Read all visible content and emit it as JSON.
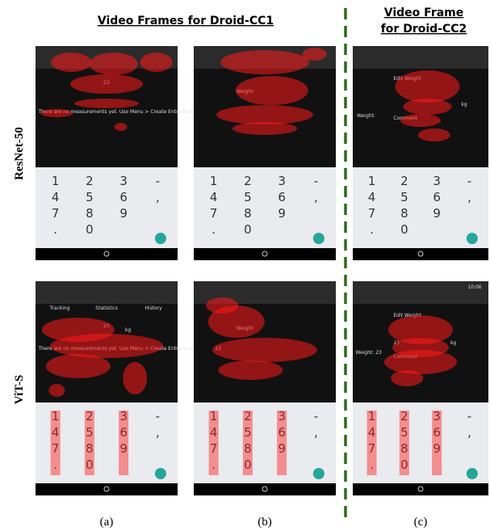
{
  "header": {
    "left": "Video Frames for Droid-CC1",
    "right": [
      "Video Frame",
      "for Droid-CC2"
    ]
  },
  "rows": [
    "ResNet-50",
    "ViT-S"
  ],
  "captions": [
    "(a)",
    "(b)",
    "(c)"
  ],
  "keypad": [
    [
      "1",
      "2",
      "3",
      "-"
    ],
    [
      "4",
      "5",
      "6",
      ","
    ],
    [
      "7",
      "8",
      "9"
    ],
    [
      ".",
      "0"
    ]
  ],
  "screens": [
    {
      "texts": [
        "23",
        "There are no measurements yet. Use Menu > Create Entry to record one."
      ]
    },
    {
      "texts": [
        "Weight"
      ]
    },
    {
      "texts": [
        "Edit Weight",
        "kg",
        "Comment",
        "Weight:"
      ]
    },
    {
      "texts": [
        "Tracking",
        "Statistics",
        "History",
        "23",
        "kg",
        "There are no measurements yet. Use Menu > Create Entry to record one."
      ]
    },
    {
      "texts": [
        "Weight",
        "23"
      ]
    },
    {
      "texts": [
        "Edit Weight",
        "23",
        "kg",
        "Comment",
        "Weight: 23",
        "10:06"
      ]
    }
  ]
}
